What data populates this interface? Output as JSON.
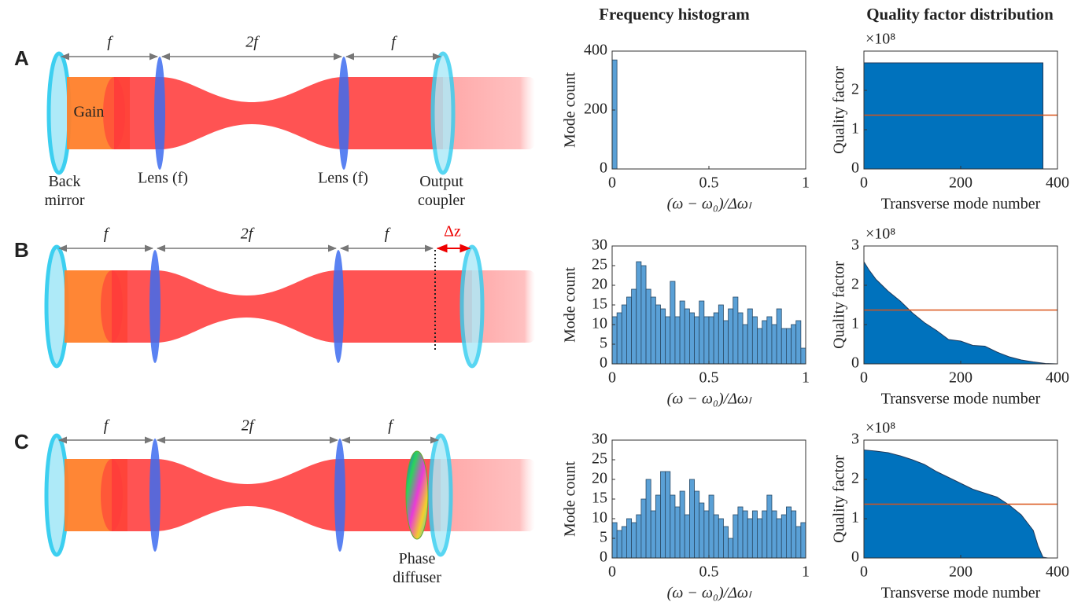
{
  "columns": [
    "Frequency histogram",
    "Quality factor distribution"
  ],
  "panels": [
    {
      "label": "A",
      "dims": [
        "f",
        "2f",
        "f"
      ],
      "gain": "Gain",
      "back_mirror": [
        "Back",
        "mirror"
      ],
      "lens_left": "Lens (f)",
      "lens_right": "Lens (f)",
      "output_coupler": [
        "Output",
        "coupler"
      ]
    },
    {
      "label": "B",
      "dims": [
        "f",
        "2f",
        "f"
      ],
      "shift": "Δz"
    },
    {
      "label": "C",
      "dims": [
        "f",
        "2f",
        "f"
      ],
      "phase_diffuser": [
        "Phase",
        "diffuser"
      ]
    }
  ],
  "chart_data": [
    {
      "type": "histogram",
      "ylabel": "Mode count",
      "xlabel": "(ω − ω₀)/Δωₗ",
      "color": "#5aa0d6",
      "bins": [
        0,
        0.025,
        0.05,
        0.075,
        0.1,
        0.125,
        0.15,
        0.175,
        0.2,
        0.225,
        0.25,
        0.275,
        0.3,
        0.325,
        0.35,
        0.375,
        0.4,
        0.425,
        0.45,
        0.475,
        0.5,
        0.525,
        0.55,
        0.575,
        0.6,
        0.625,
        0.65,
        0.675,
        0.7,
        0.725,
        0.75,
        0.775,
        0.8,
        0.825,
        0.85,
        0.875,
        0.9,
        0.925,
        0.95,
        0.975,
        1
      ],
      "counts": [
        370,
        0,
        0,
        0,
        0,
        0,
        0,
        0,
        0,
        0,
        0,
        0,
        0,
        0,
        0,
        0,
        0,
        0,
        0,
        0,
        0,
        0,
        0,
        0,
        0,
        0,
        0,
        0,
        0,
        0,
        0,
        0,
        0,
        0,
        0,
        0,
        0,
        0,
        0,
        0
      ],
      "xlim": [
        0,
        1
      ],
      "xticks": [
        0,
        0.5,
        1
      ],
      "ylim": [
        0,
        400
      ],
      "yticks": [
        0,
        200,
        400
      ]
    },
    {
      "type": "area",
      "ylabel": "Quality factor",
      "xlabel": "Transverse mode number",
      "multiplier": "×10⁸",
      "series": [
        {
          "type": "area",
          "color": "#0072bd",
          "x": [
            0,
            370
          ],
          "values": [
            2.7,
            2.7
          ]
        },
        {
          "type": "line",
          "color": "#d95319",
          "x": [
            0,
            400
          ],
          "values": [
            1.37,
            1.37
          ]
        }
      ],
      "xlim": [
        0,
        400
      ],
      "xticks": [
        0,
        200,
        400
      ],
      "ylim": [
        0,
        3
      ],
      "yticks": [
        0,
        1,
        2
      ]
    },
    {
      "type": "histogram",
      "ylabel": "Mode count",
      "xlabel": "(ω − ω₀)/Δωₗ",
      "color": "#5aa0d6",
      "bins": [
        0,
        0.025,
        0.05,
        0.075,
        0.1,
        0.125,
        0.15,
        0.175,
        0.2,
        0.225,
        0.25,
        0.275,
        0.3,
        0.325,
        0.35,
        0.375,
        0.4,
        0.425,
        0.45,
        0.475,
        0.5,
        0.525,
        0.55,
        0.575,
        0.6,
        0.625,
        0.65,
        0.675,
        0.7,
        0.725,
        0.75,
        0.775,
        0.8,
        0.825,
        0.85,
        0.875,
        0.9,
        0.925,
        0.95,
        0.975,
        1
      ],
      "counts": [
        12,
        13,
        15,
        17,
        19,
        26,
        25,
        19,
        17,
        15,
        14,
        12,
        21,
        12,
        16,
        14,
        13,
        12,
        16,
        12,
        12,
        13,
        15,
        11,
        14,
        17,
        13,
        10,
        14,
        12,
        9,
        11,
        12,
        10,
        14,
        9,
        9,
        10,
        11,
        4
      ],
      "xlim": [
        0,
        1
      ],
      "xticks": [
        0,
        0.5,
        1
      ],
      "ylim": [
        0,
        30
      ],
      "yticks": [
        0,
        5,
        10,
        15,
        20,
        25,
        30
      ]
    },
    {
      "type": "area",
      "ylabel": "Quality factor",
      "xlabel": "Transverse mode number",
      "multiplier": "×10⁸",
      "series": [
        {
          "type": "area",
          "color": "#0072bd",
          "x": [
            0,
            10,
            25,
            50,
            75,
            100,
            125,
            150,
            175,
            200,
            225,
            250,
            275,
            300,
            325,
            350,
            375,
            400
          ],
          "values": [
            2.6,
            2.4,
            2.15,
            1.85,
            1.6,
            1.3,
            1.05,
            0.85,
            0.62,
            0.58,
            0.47,
            0.45,
            0.3,
            0.18,
            0.1,
            0.05,
            0.01,
            0
          ]
        },
        {
          "type": "line",
          "color": "#d95319",
          "x": [
            0,
            400
          ],
          "values": [
            1.37,
            1.37
          ]
        }
      ],
      "xlim": [
        0,
        400
      ],
      "xticks": [
        0,
        200,
        400
      ],
      "ylim": [
        0,
        3
      ],
      "yticks": [
        0,
        1,
        2,
        3
      ]
    },
    {
      "type": "histogram",
      "ylabel": "Mode count",
      "xlabel": "(ω − ω₀)/Δωₗ",
      "color": "#5aa0d6",
      "bins": [
        0,
        0.025,
        0.05,
        0.075,
        0.1,
        0.125,
        0.15,
        0.175,
        0.2,
        0.225,
        0.25,
        0.275,
        0.3,
        0.325,
        0.35,
        0.375,
        0.4,
        0.425,
        0.45,
        0.475,
        0.5,
        0.525,
        0.55,
        0.575,
        0.6,
        0.625,
        0.65,
        0.675,
        0.7,
        0.725,
        0.75,
        0.775,
        0.8,
        0.825,
        0.85,
        0.875,
        0.9,
        0.925,
        0.95,
        0.975,
        1
      ],
      "counts": [
        9,
        7,
        8,
        10,
        9,
        11,
        15,
        20,
        12,
        16,
        22,
        22,
        16,
        13,
        17,
        11,
        20,
        17,
        14,
        12,
        16,
        11,
        10,
        8,
        5,
        11,
        13,
        12,
        10,
        12,
        10,
        12,
        16,
        12,
        10,
        11,
        13,
        12,
        8,
        9
      ],
      "xlim": [
        0,
        1
      ],
      "xticks": [
        0,
        0.5,
        1
      ],
      "ylim": [
        0,
        30
      ],
      "yticks": [
        0,
        5,
        10,
        15,
        20,
        25,
        30
      ]
    },
    {
      "type": "area",
      "ylabel": "Quality factor",
      "xlabel": "Transverse mode number",
      "multiplier": "×10⁸",
      "series": [
        {
          "type": "area",
          "color": "#0072bd",
          "x": [
            0,
            25,
            50,
            75,
            100,
            125,
            150,
            175,
            200,
            225,
            250,
            275,
            300,
            325,
            350,
            360,
            370,
            380,
            400
          ],
          "values": [
            2.75,
            2.72,
            2.68,
            2.6,
            2.5,
            2.38,
            2.2,
            2.05,
            1.9,
            1.75,
            1.65,
            1.55,
            1.35,
            1.1,
            0.7,
            0.3,
            0.02,
            0,
            0
          ]
        },
        {
          "type": "line",
          "color": "#d95319",
          "x": [
            0,
            400
          ],
          "values": [
            1.37,
            1.37
          ]
        }
      ],
      "xlim": [
        0,
        400
      ],
      "xticks": [
        0,
        200,
        400
      ],
      "ylim": [
        0,
        3
      ],
      "yticks": [
        0,
        1,
        2,
        3
      ]
    }
  ]
}
